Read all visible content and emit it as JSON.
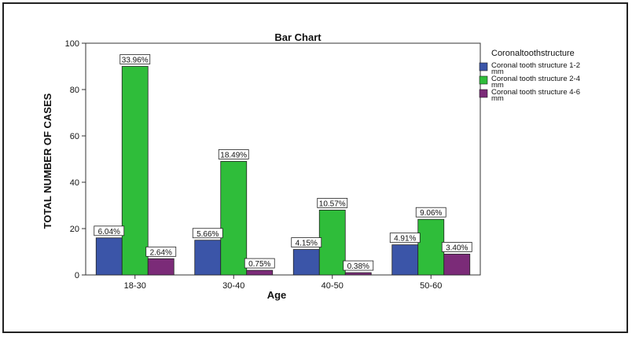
{
  "chart_data": {
    "type": "bar",
    "title": "Bar Chart",
    "xlabel": "Age",
    "ylabel": "TOTAL NUMBER OF CASES",
    "ylim": [
      0,
      100
    ],
    "yticks": [
      0,
      20,
      40,
      60,
      80,
      100
    ],
    "categories": [
      "18-30",
      "30-40",
      "40-50",
      "50-60"
    ],
    "legend_title": "Coronaltoothstructure",
    "legend_position": "top-right",
    "grid": false,
    "series": [
      {
        "name": "Coronal tooth structure 1-2 mm",
        "color": "#3b55a8",
        "values": [
          16,
          15,
          11,
          13
        ],
        "labels": [
          "6.04%",
          "5.66%",
          "4.15%",
          "4.91%"
        ]
      },
      {
        "name": "Coronal tooth structure 2-4 mm",
        "color": "#2fbd3a",
        "values": [
          90,
          49,
          28,
          24
        ],
        "labels": [
          "33.96%",
          "18.49%",
          "10.57%",
          "9.06%"
        ]
      },
      {
        "name": "Coronal tooth structure 4-6 mm",
        "color": "#7b2b78",
        "values": [
          7,
          2,
          1,
          9
        ],
        "labels": [
          "2.64%",
          "0.75%",
          "0.38%",
          "3.40%"
        ]
      }
    ]
  }
}
